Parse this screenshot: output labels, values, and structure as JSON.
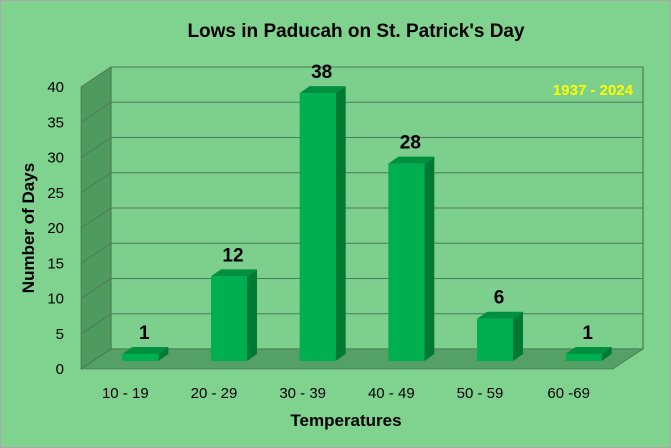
{
  "chart_data": {
    "type": "bar",
    "title": "Lows in Paducah on St. Patrick's Day",
    "annotation": "1937 - 2024",
    "xlabel": "Temperatures",
    "ylabel": "Number of Days",
    "categories": [
      "10 - 19",
      "20 - 29",
      "30 - 39",
      "40 - 49",
      "50 - 59",
      "60 -69"
    ],
    "values": [
      1,
      12,
      38,
      28,
      6,
      1
    ],
    "ylim": [
      0,
      40
    ],
    "yticks": [
      0,
      5,
      10,
      15,
      20,
      25,
      30,
      35,
      40
    ],
    "grid": true,
    "legend": "none",
    "three_d": true
  },
  "colors": {
    "background": "#80d38f",
    "bar_front": "#00b050",
    "bar_side": "#007a33",
    "bar_top": "#00903f",
    "back_wall": "#7ccf8c",
    "side_wall": "#4f9a5f",
    "floor": "#55a066",
    "gridline": "#4d7a57",
    "annotation": "#ffff00"
  }
}
